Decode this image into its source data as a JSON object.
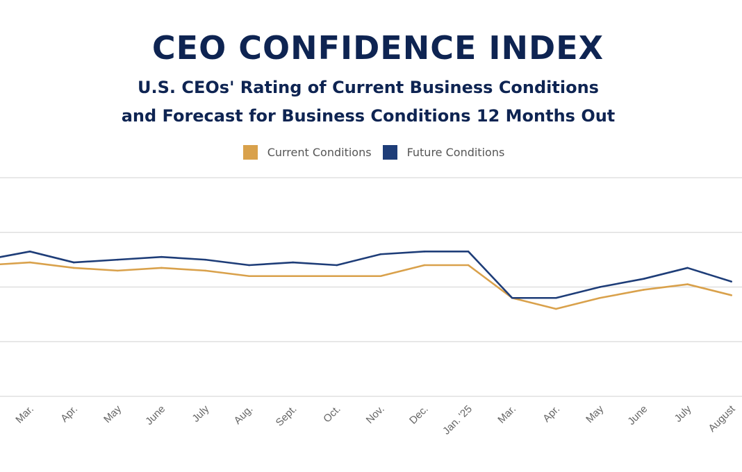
{
  "chart_data": {
    "type": "line",
    "title": "CEO CONFIDENCE INDEX",
    "subtitle": [
      "U.S. CEOs' Rating of Current Business Conditions",
      "and Forecast for Business Conditions 12 Months Out"
    ],
    "categories": [
      "",
      "Mar.",
      "Apr.",
      "May",
      "June",
      "July",
      "Aug.",
      "Sept.",
      "Oct.",
      "Nov.",
      "Dec.",
      "Jan. '25",
      "Mar.",
      "Apr.",
      "May",
      "June",
      "July",
      "August"
    ],
    "series": [
      {
        "name": "Current Conditions",
        "color": "#d9a14b",
        "values": [
          6.8,
          6.9,
          6.7,
          6.6,
          6.7,
          6.6,
          6.4,
          6.4,
          6.4,
          6.4,
          6.8,
          6.8,
          5.6,
          5.2,
          5.6,
          5.9,
          6.1,
          5.7
        ]
      },
      {
        "name": "Future Conditions",
        "color": "#1e3d78",
        "values": [
          7.0,
          7.3,
          6.9,
          7.0,
          7.1,
          7.0,
          6.8,
          6.9,
          6.8,
          7.2,
          7.3,
          7.3,
          5.6,
          5.6,
          6.0,
          6.3,
          6.7,
          6.2
        ]
      }
    ],
    "ylim": [
      2,
      10
    ],
    "gridlines": [
      2,
      4,
      6,
      8,
      10
    ],
    "grid": true,
    "legend_position": "top-center",
    "xlabel": "",
    "ylabel": ""
  }
}
